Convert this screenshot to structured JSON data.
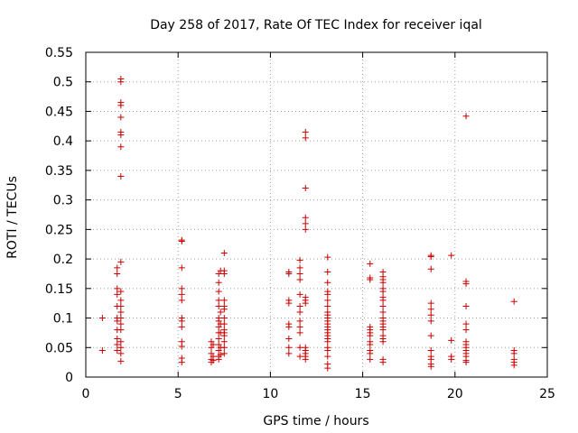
{
  "chart": {
    "title": "Day 258 of 2017, Rate Of TEC Index for receiver iqal",
    "xlabel": "GPS time / hours",
    "ylabel": "ROTI / TECUs"
  },
  "colors": {
    "series": "#cc0000",
    "frame": "#000000",
    "grid": "#a0a0a0"
  },
  "chart_data": {
    "type": "scatter",
    "title": "Day 258 of 2017, Rate Of TEC Index for receiver iqal",
    "xlabel": "GPS time / hours",
    "ylabel": "ROTI / TECUs",
    "xlim": [
      0,
      25
    ],
    "ylim": [
      0,
      0.55
    ],
    "x_ticks": [
      0,
      5,
      10,
      15,
      20,
      25
    ],
    "x_tick_labels": [
      "0",
      "5",
      "10",
      "15",
      "20",
      "25"
    ],
    "y_ticks": [
      0,
      0.05,
      0.1,
      0.15,
      0.2,
      0.25,
      0.3,
      0.35,
      0.4,
      0.45,
      0.5,
      0.55
    ],
    "y_tick_labels": [
      "0",
      "0.05",
      "0.1",
      "0.15",
      "0.2",
      "0.25",
      "0.3",
      "0.35",
      "0.4",
      "0.45",
      "0.5",
      "0.55"
    ],
    "grid": true,
    "legend": "none",
    "marker": "plus",
    "series": [
      {
        "points": [
          [
            0.9,
            0.1
          ],
          [
            0.9,
            0.045
          ],
          [
            1.7,
            0.185
          ],
          [
            1.7,
            0.175
          ],
          [
            1.7,
            0.15
          ],
          [
            1.7,
            0.14
          ],
          [
            1.7,
            0.12
          ],
          [
            1.7,
            0.1
          ],
          [
            1.7,
            0.095
          ],
          [
            1.7,
            0.08
          ],
          [
            1.7,
            0.065
          ],
          [
            1.7,
            0.055
          ],
          [
            1.7,
            0.045
          ],
          [
            1.9,
            0.505
          ],
          [
            1.9,
            0.5
          ],
          [
            1.9,
            0.465
          ],
          [
            1.9,
            0.46
          ],
          [
            1.9,
            0.44
          ],
          [
            1.9,
            0.415
          ],
          [
            1.9,
            0.41
          ],
          [
            1.9,
            0.39
          ],
          [
            1.9,
            0.34
          ],
          [
            1.9,
            0.195
          ],
          [
            1.9,
            0.145
          ],
          [
            1.9,
            0.13
          ],
          [
            1.9,
            0.12
          ],
          [
            1.9,
            0.11
          ],
          [
            1.9,
            0.1
          ],
          [
            1.9,
            0.09
          ],
          [
            1.9,
            0.08
          ],
          [
            1.9,
            0.06
          ],
          [
            1.9,
            0.05
          ],
          [
            1.9,
            0.04
          ],
          [
            1.9,
            0.027
          ],
          [
            5.2,
            0.232
          ],
          [
            5.2,
            0.23
          ],
          [
            5.2,
            0.185
          ],
          [
            5.2,
            0.15
          ],
          [
            5.2,
            0.14
          ],
          [
            5.2,
            0.13
          ],
          [
            5.2,
            0.1
          ],
          [
            5.2,
            0.095
          ],
          [
            5.2,
            0.085
          ],
          [
            5.2,
            0.06
          ],
          [
            5.2,
            0.052
          ],
          [
            5.2,
            0.032
          ],
          [
            5.2,
            0.025
          ],
          [
            6.8,
            0.06
          ],
          [
            6.8,
            0.05
          ],
          [
            6.8,
            0.04
          ],
          [
            6.8,
            0.03
          ],
          [
            6.8,
            0.025
          ],
          [
            6.9,
            0.055
          ],
          [
            6.9,
            0.035
          ],
          [
            6.9,
            0.028
          ],
          [
            7.2,
            0.175
          ],
          [
            7.2,
            0.16
          ],
          [
            7.2,
            0.145
          ],
          [
            7.2,
            0.13
          ],
          [
            7.2,
            0.12
          ],
          [
            7.2,
            0.1
          ],
          [
            7.2,
            0.095
          ],
          [
            7.2,
            0.085
          ],
          [
            7.2,
            0.075
          ],
          [
            7.2,
            0.065
          ],
          [
            7.2,
            0.055
          ],
          [
            7.2,
            0.045
          ],
          [
            7.2,
            0.035
          ],
          [
            7.2,
            0.03
          ],
          [
            7.3,
            0.18
          ],
          [
            7.3,
            0.11
          ],
          [
            7.3,
            0.09
          ],
          [
            7.3,
            0.075
          ],
          [
            7.3,
            0.05
          ],
          [
            7.3,
            0.038
          ],
          [
            7.5,
            0.21
          ],
          [
            7.5,
            0.18
          ],
          [
            7.5,
            0.175
          ],
          [
            7.5,
            0.13
          ],
          [
            7.5,
            0.12
          ],
          [
            7.5,
            0.115
          ],
          [
            7.5,
            0.1
          ],
          [
            7.5,
            0.09
          ],
          [
            7.5,
            0.08
          ],
          [
            7.5,
            0.075
          ],
          [
            7.5,
            0.07
          ],
          [
            7.5,
            0.06
          ],
          [
            7.5,
            0.05
          ],
          [
            7.5,
            0.04
          ],
          [
            11.0,
            0.178
          ],
          [
            11.0,
            0.175
          ],
          [
            11.0,
            0.13
          ],
          [
            11.0,
            0.125
          ],
          [
            11.0,
            0.09
          ],
          [
            11.0,
            0.085
          ],
          [
            11.0,
            0.065
          ],
          [
            11.0,
            0.05
          ],
          [
            11.0,
            0.04
          ],
          [
            11.6,
            0.198
          ],
          [
            11.6,
            0.185
          ],
          [
            11.6,
            0.175
          ],
          [
            11.6,
            0.165
          ],
          [
            11.6,
            0.14
          ],
          [
            11.6,
            0.12
          ],
          [
            11.6,
            0.11
          ],
          [
            11.6,
            0.095
          ],
          [
            11.6,
            0.085
          ],
          [
            11.6,
            0.075
          ],
          [
            11.6,
            0.05
          ],
          [
            11.6,
            0.035
          ],
          [
            11.9,
            0.415
          ],
          [
            11.9,
            0.405
          ],
          [
            11.9,
            0.32
          ],
          [
            11.9,
            0.27
          ],
          [
            11.9,
            0.26
          ],
          [
            11.9,
            0.25
          ],
          [
            11.9,
            0.135
          ],
          [
            11.9,
            0.13
          ],
          [
            11.9,
            0.125
          ],
          [
            11.9,
            0.05
          ],
          [
            11.9,
            0.045
          ],
          [
            11.9,
            0.04
          ],
          [
            11.9,
            0.035
          ],
          [
            11.9,
            0.03
          ],
          [
            13.1,
            0.203
          ],
          [
            13.1,
            0.178
          ],
          [
            13.1,
            0.16
          ],
          [
            13.1,
            0.145
          ],
          [
            13.1,
            0.14
          ],
          [
            13.1,
            0.13
          ],
          [
            13.1,
            0.12
          ],
          [
            13.1,
            0.11
          ],
          [
            13.1,
            0.105
          ],
          [
            13.1,
            0.1
          ],
          [
            13.1,
            0.095
          ],
          [
            13.1,
            0.09
          ],
          [
            13.1,
            0.085
          ],
          [
            13.1,
            0.08
          ],
          [
            13.1,
            0.075
          ],
          [
            13.1,
            0.07
          ],
          [
            13.1,
            0.065
          ],
          [
            13.1,
            0.06
          ],
          [
            13.1,
            0.05
          ],
          [
            13.1,
            0.045
          ],
          [
            13.1,
            0.035
          ],
          [
            13.1,
            0.022
          ],
          [
            13.1,
            0.015
          ],
          [
            15.4,
            0.192
          ],
          [
            15.4,
            0.168
          ],
          [
            15.4,
            0.165
          ],
          [
            15.4,
            0.085
          ],
          [
            15.4,
            0.08
          ],
          [
            15.4,
            0.075
          ],
          [
            15.4,
            0.07
          ],
          [
            15.4,
            0.06
          ],
          [
            15.4,
            0.055
          ],
          [
            15.4,
            0.045
          ],
          [
            15.4,
            0.04
          ],
          [
            15.4,
            0.03
          ],
          [
            16.1,
            0.178
          ],
          [
            16.1,
            0.17
          ],
          [
            16.1,
            0.165
          ],
          [
            16.1,
            0.16
          ],
          [
            16.1,
            0.15
          ],
          [
            16.1,
            0.145
          ],
          [
            16.1,
            0.135
          ],
          [
            16.1,
            0.13
          ],
          [
            16.1,
            0.12
          ],
          [
            16.1,
            0.11
          ],
          [
            16.1,
            0.1
          ],
          [
            16.1,
            0.095
          ],
          [
            16.1,
            0.09
          ],
          [
            16.1,
            0.085
          ],
          [
            16.1,
            0.08
          ],
          [
            16.1,
            0.07
          ],
          [
            16.1,
            0.065
          ],
          [
            16.1,
            0.06
          ],
          [
            16.1,
            0.03
          ],
          [
            16.1,
            0.025
          ],
          [
            18.7,
            0.206
          ],
          [
            18.7,
            0.204
          ],
          [
            18.7,
            0.183
          ],
          [
            18.7,
            0.125
          ],
          [
            18.7,
            0.115
          ],
          [
            18.7,
            0.105
          ],
          [
            18.7,
            0.095
          ],
          [
            18.7,
            0.07
          ],
          [
            18.7,
            0.045
          ],
          [
            18.7,
            0.035
          ],
          [
            18.7,
            0.03
          ],
          [
            18.7,
            0.022
          ],
          [
            18.7,
            0.018
          ],
          [
            19.8,
            0.206
          ],
          [
            19.8,
            0.062
          ],
          [
            19.8,
            0.035
          ],
          [
            19.8,
            0.03
          ],
          [
            20.6,
            0.442
          ],
          [
            20.6,
            0.162
          ],
          [
            20.6,
            0.158
          ],
          [
            20.6,
            0.12
          ],
          [
            20.6,
            0.09
          ],
          [
            20.6,
            0.08
          ],
          [
            20.6,
            0.06
          ],
          [
            20.6,
            0.055
          ],
          [
            20.6,
            0.05
          ],
          [
            20.6,
            0.045
          ],
          [
            20.6,
            0.04
          ],
          [
            20.6,
            0.035
          ],
          [
            20.6,
            0.028
          ],
          [
            20.6,
            0.025
          ],
          [
            23.2,
            0.128
          ],
          [
            23.2,
            0.045
          ],
          [
            23.2,
            0.04
          ],
          [
            23.2,
            0.03
          ],
          [
            23.2,
            0.025
          ],
          [
            23.2,
            0.02
          ]
        ]
      }
    ]
  }
}
